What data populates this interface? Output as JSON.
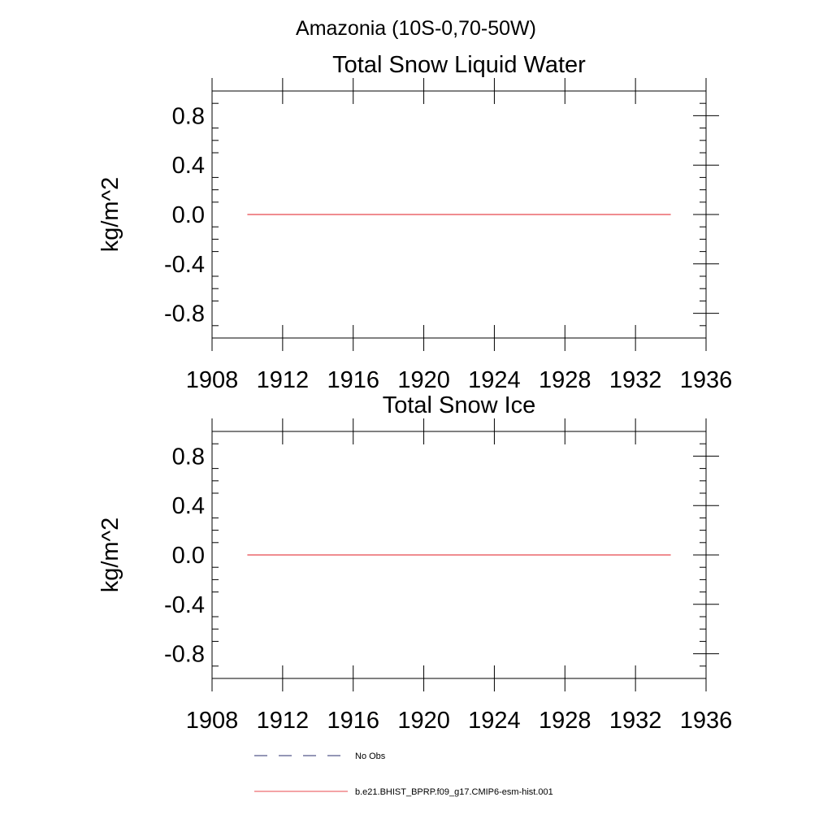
{
  "page_title": "Amazonia (10S-0,70-50W)",
  "colors": {
    "model_line": "#e8484d",
    "obs_line": "#2a2f6e",
    "axis": "#000000"
  },
  "legend": {
    "placement": "bottom",
    "items": [
      {
        "label": "No Obs",
        "style": "dashed",
        "color": "#2a2f6e"
      },
      {
        "label": "b.e21.BHIST_BPRP.f09_g17.CMIP6-esm-hist.001",
        "style": "solid",
        "color": "#e8484d"
      }
    ]
  },
  "chart_data": [
    {
      "type": "line",
      "title": "Total Snow Liquid Water",
      "xlabel": "",
      "ylabel": "kg/m^2",
      "xlim": [
        1908,
        1936
      ],
      "ylim": [
        -1.0,
        1.0
      ],
      "xticks": [
        1908,
        1912,
        1916,
        1920,
        1924,
        1928,
        1932,
        1936
      ],
      "yticks": [
        0.8,
        0.4,
        0.0,
        -0.4,
        -0.8
      ],
      "ytick_labels": [
        "0.8",
        "0.4",
        "0.0",
        "-0.4",
        "-0.8"
      ],
      "grid": false,
      "series": [
        {
          "name": "b.e21.BHIST_BPRP.f09_g17.CMIP6-esm-hist.001",
          "x": [
            1910,
            1934
          ],
          "y": [
            0.0,
            0.0
          ]
        }
      ]
    },
    {
      "type": "line",
      "title": "Total Snow Ice",
      "xlabel": "",
      "ylabel": "kg/m^2",
      "xlim": [
        1908,
        1936
      ],
      "ylim": [
        -1.0,
        1.0
      ],
      "xticks": [
        1908,
        1912,
        1916,
        1920,
        1924,
        1928,
        1932,
        1936
      ],
      "yticks": [
        0.8,
        0.4,
        0.0,
        -0.4,
        -0.8
      ],
      "ytick_labels": [
        "0.8",
        "0.4",
        "0.0",
        "-0.4",
        "-0.8"
      ],
      "grid": false,
      "series": [
        {
          "name": "b.e21.BHIST_BPRP.f09_g17.CMIP6-esm-hist.001",
          "x": [
            1910,
            1934
          ],
          "y": [
            0.0,
            0.0
          ]
        }
      ]
    }
  ]
}
